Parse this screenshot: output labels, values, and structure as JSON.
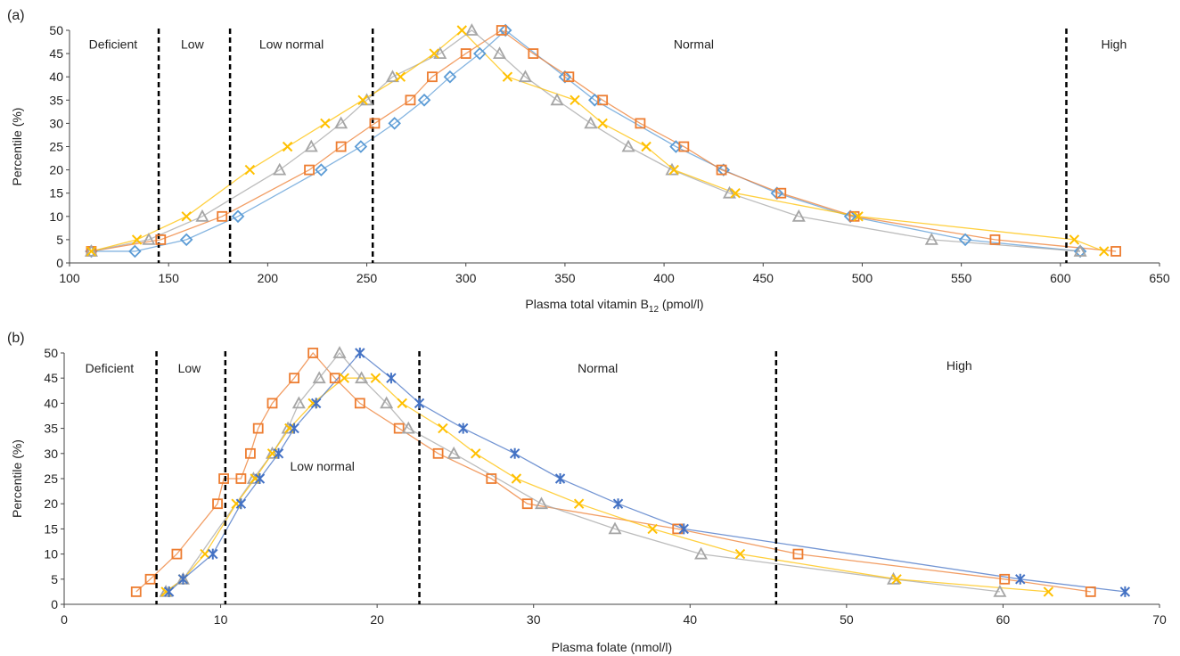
{
  "colors": {
    "diamond": "#5b9bd5",
    "square": "#ed7d31",
    "triangle": "#a5a5a5",
    "x": "#ffc000",
    "star": "#4472c4",
    "threshold": "#000000",
    "axis": "#444444"
  },
  "chart_data": [
    {
      "type": "line",
      "panel_label": "(a)",
      "xlabel_main": "Plasma total vitamin B",
      "xlabel_sub": "12",
      "xlabel_unit": " (pmol/l)",
      "ylabel": "Percentile (%)",
      "xlim": [
        100,
        650
      ],
      "ylim": [
        0,
        50
      ],
      "xticks": [
        "100",
        "150",
        "200",
        "250",
        "300",
        "350",
        "400",
        "450",
        "500",
        "550",
        "600",
        "650"
      ],
      "yticks": [
        "0",
        "5",
        "10",
        "15",
        "20",
        "25",
        "30",
        "35",
        "40",
        "45",
        "50"
      ],
      "thresholds": [
        145,
        181,
        253,
        603
      ],
      "regions": [
        {
          "label": "Deficient",
          "x": 122
        },
        {
          "label": "Low",
          "x": 162
        },
        {
          "label": "Low normal",
          "x": 212
        },
        {
          "label": "Normal",
          "x": 415
        },
        {
          "label": "High",
          "x": 627
        }
      ],
      "region_label_y": 47,
      "series": [
        {
          "marker": "diamond",
          "x": [
            111,
            133,
            159,
            185,
            227,
            247,
            264,
            279,
            292,
            307,
            320,
            350,
            365,
            406,
            430,
            457,
            494,
            552,
            610
          ],
          "y": [
            2.5,
            2.5,
            5,
            10,
            20,
            25,
            30,
            35,
            40,
            45,
            50,
            40,
            35,
            25,
            20,
            15,
            10,
            5,
            2.5
          ]
        },
        {
          "marker": "square",
          "x": [
            111,
            146,
            177,
            221,
            237,
            254,
            272,
            283,
            300,
            318,
            334,
            352,
            369,
            388,
            410,
            429,
            459,
            496,
            567,
            628
          ],
          "y": [
            2.5,
            5,
            10,
            20,
            25,
            30,
            35,
            40,
            45,
            50,
            45,
            40,
            35,
            30,
            25,
            20,
            15,
            10,
            5,
            2.5
          ]
        },
        {
          "marker": "triangle",
          "x": [
            111,
            140,
            167,
            206,
            222,
            237,
            250,
            263,
            287,
            303,
            317,
            330,
            346,
            363,
            382,
            404,
            433,
            468,
            535,
            610
          ],
          "y": [
            2.5,
            5,
            10,
            20,
            25,
            30,
            35,
            40,
            45,
            50,
            45,
            40,
            35,
            30,
            25,
            20,
            15,
            10,
            5,
            2.5
          ]
        },
        {
          "marker": "x",
          "x": [
            111,
            134,
            159,
            191,
            210,
            229,
            248,
            267,
            284,
            298,
            321,
            355,
            369,
            391,
            405,
            436,
            498,
            607,
            622
          ],
          "y": [
            2.5,
            5,
            10,
            20,
            25,
            30,
            35,
            40,
            45,
            50,
            40,
            35,
            30,
            25,
            20,
            15,
            10,
            5,
            2.5
          ]
        }
      ]
    },
    {
      "type": "line",
      "panel_label": "(b)",
      "xlabel_main": "Plasma folate (nmol/l)",
      "xlabel_sub": "",
      "xlabel_unit": "",
      "ylabel": "Percentile (%)",
      "xlim": [
        0,
        70
      ],
      "ylim": [
        0,
        50
      ],
      "xticks": [
        "0",
        "10",
        "20",
        "30",
        "40",
        "50",
        "60",
        "70"
      ],
      "yticks": [
        "0",
        "5",
        "10",
        "15",
        "20",
        "25",
        "30",
        "35",
        "40",
        "45",
        "50"
      ],
      "thresholds": [
        5.9,
        10.3,
        22.7,
        45.5
      ],
      "regions": [
        {
          "label": "Deficient",
          "x": 2.9,
          "y": 47
        },
        {
          "label": "Low",
          "x": 8,
          "y": 47
        },
        {
          "label": "Low normal",
          "x": 16.5,
          "y": 27.5
        },
        {
          "label": "Normal",
          "x": 34.1,
          "y": 47
        },
        {
          "label": "High",
          "x": 57.2,
          "y": 47.5
        }
      ],
      "series": [
        {
          "marker": "square",
          "x": [
            4.6,
            5.5,
            7.2,
            9.8,
            10.2,
            11.3,
            11.9,
            12.4,
            13.3,
            14.7,
            15.9,
            17.3,
            18.9,
            21.4,
            23.9,
            27.3,
            29.6,
            39.2,
            46.9,
            60.1,
            65.6
          ],
          "y": [
            2.5,
            5,
            10,
            20,
            25,
            25,
            30,
            35,
            40,
            45,
            50,
            45,
            40,
            35,
            30,
            25,
            20,
            15,
            10,
            5,
            2.5
          ]
        },
        {
          "marker": "triangle",
          "x": [
            6.5,
            7.6,
            12.1,
            13.3,
            14.3,
            15.0,
            16.3,
            17.6,
            19.0,
            20.6,
            22.0,
            24.9,
            30.5,
            35.2,
            40.7,
            53.0,
            59.8
          ],
          "y": [
            2.5,
            5,
            25,
            30,
            35,
            40,
            45,
            50,
            45,
            40,
            35,
            30,
            20,
            15,
            10,
            5,
            2.5
          ]
        },
        {
          "marker": "x",
          "x": [
            6.5,
            7.6,
            9.0,
            11.0,
            12.2,
            13.3,
            14.4,
            15.9,
            17.9,
            19.9,
            21.6,
            24.2,
            26.3,
            28.9,
            32.9,
            37.6,
            43.2,
            53.2,
            62.9
          ],
          "y": [
            2.5,
            5,
            10,
            20,
            25,
            30,
            35,
            40,
            45,
            45,
            40,
            35,
            30,
            25,
            20,
            15,
            10,
            5,
            2.5
          ]
        },
        {
          "marker": "star",
          "x": [
            6.7,
            7.6,
            9.5,
            11.3,
            12.5,
            13.7,
            14.7,
            16.1,
            18.9,
            20.9,
            22.7,
            25.5,
            28.8,
            31.7,
            35.4,
            39.6,
            61.1,
            67.8
          ],
          "y": [
            2.5,
            5,
            10,
            20,
            25,
            30,
            35,
            40,
            50,
            45,
            40,
            35,
            30,
            25,
            20,
            15,
            5,
            2.5
          ]
        }
      ]
    }
  ]
}
